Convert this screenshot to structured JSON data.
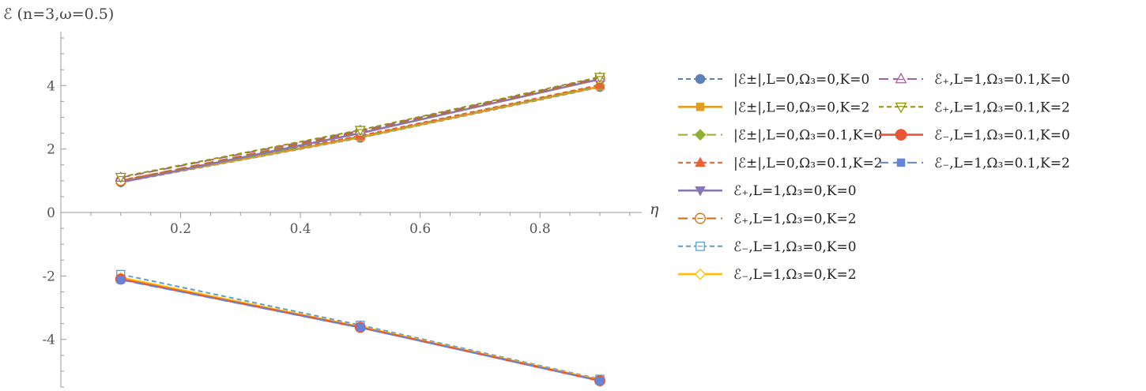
{
  "chart_data": {
    "type": "line",
    "title": "ℰ (n=3,ω=0.5)",
    "xlabel": "η",
    "ylabel": "",
    "xlim": [
      0.0,
      0.97
    ],
    "ylim": [
      -5.5,
      5.7
    ],
    "x_ticks": [
      0.2,
      0.4,
      0.6,
      0.8
    ],
    "x_tick_labels": [
      "0.2",
      "0.4",
      "0.6",
      "0.8"
    ],
    "y_ticks": [
      -4,
      -2,
      0,
      2,
      4
    ],
    "y_tick_labels": [
      "-4",
      "-2",
      "0",
      "2",
      "4"
    ],
    "grid": false,
    "legend_position": "right",
    "x": [
      0.1,
      0.5,
      0.9
    ],
    "series": [
      {
        "name": "|ℰ±|,L=0,Ω₃=0,K=0",
        "values": [
          0.95,
          2.35,
          3.95
        ],
        "color": "#5e81b5",
        "dash": "dashed",
        "marker": "circle"
      },
      {
        "name": "|ℰ±|,L=0,Ω₃=0,K=2",
        "values": [
          0.97,
          2.37,
          3.97
        ],
        "color": "#e19c24",
        "dash": "solid",
        "marker": "square"
      },
      {
        "name": "|ℰ±|,L=0,Ω₃=0.1,K=0",
        "values": [
          1.0,
          2.4,
          4.0
        ],
        "color": "#8fb032",
        "dash": "longdash",
        "marker": "diamond"
      },
      {
        "name": "|ℰ±|,L=0,Ω₃=0.1,K=2",
        "values": [
          1.02,
          2.42,
          4.02
        ],
        "color": "#eb6235",
        "dash": "dashed",
        "marker": "triangle-up"
      },
      {
        "name": "ℰ₊,L=1,Ω₃=0,K=0",
        "values": [
          0.95,
          2.5,
          4.2
        ],
        "color": "#8778b3",
        "dash": "solid",
        "marker": "triangle-down"
      },
      {
        "name": "ℰ₊,L=1,Ω₃=0,K=2",
        "values": [
          1.0,
          2.55,
          4.22
        ],
        "color": "#c56e1a",
        "dash": "longdash",
        "marker": "circle-open-bar"
      },
      {
        "name": "ℰ₋,L=1,Ω₃=0,K=0",
        "values": [
          -1.95,
          -3.55,
          -5.25
        ],
        "color": "#5d9ec7",
        "dash": "dashed",
        "marker": "square-open-bar"
      },
      {
        "name": "ℰ₋,L=1,Ω₃=0,K=2",
        "values": [
          -2.05,
          -3.6,
          -5.28
        ],
        "color": "#ffbf00",
        "dash": "solid",
        "marker": "diamond-open"
      },
      {
        "name": "ℰ₊,L=1,Ω₃=0.1,K=0",
        "values": [
          1.1,
          2.58,
          4.25
        ],
        "color": "#a5609d",
        "dash": "longdash",
        "marker": "triangle-up-open"
      },
      {
        "name": "ℰ₊,L=1,Ω₃=0.1,K=2",
        "values": [
          1.12,
          2.6,
          4.27
        ],
        "color": "#929600",
        "dash": "dashed",
        "marker": "triangle-down-open"
      },
      {
        "name": "ℰ₋,L=1,Ω₃=0.1,K=0",
        "values": [
          -2.1,
          -3.62,
          -5.3
        ],
        "color": "#e95536",
        "dash": "solid",
        "marker": "circle-large"
      },
      {
        "name": "ℰ₋,L=1,Ω₃=0.1,K=2",
        "values": [
          -2.12,
          -3.63,
          -5.3
        ],
        "color": "#6685d9",
        "dash": "longdash",
        "marker": "square"
      }
    ]
  }
}
